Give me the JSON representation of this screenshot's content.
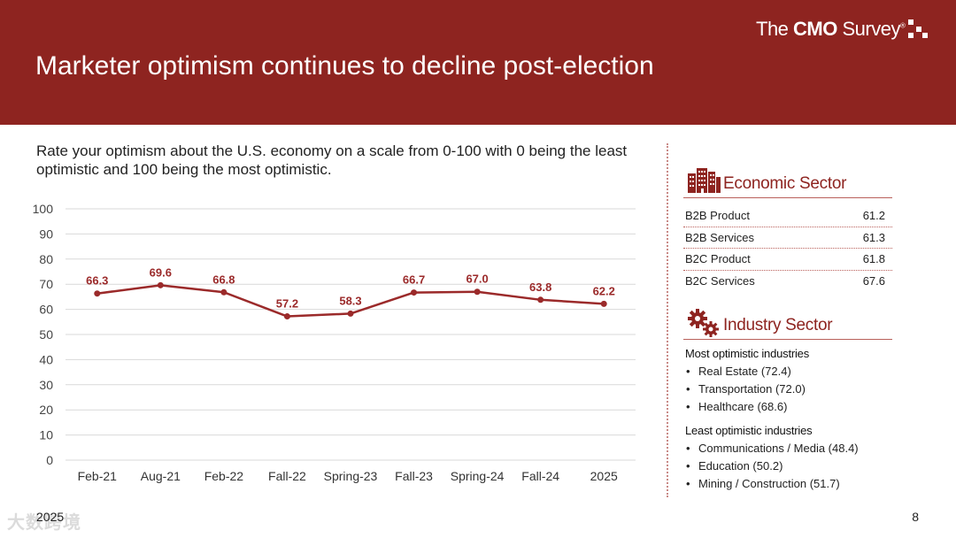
{
  "header": {
    "title": "Marketer optimism continues to decline post-election",
    "logo_prefix": "The ",
    "logo_bold": "CMO",
    "logo_suffix": " Survey",
    "logo_mark": "®"
  },
  "question": "Rate your optimism about the U.S. economy on a scale from 0-100 with 0 being the least optimistic and 100 being the most optimistic.",
  "chart_data": {
    "type": "line",
    "categories": [
      "Feb-21",
      "Aug-21",
      "Feb-22",
      "Fall-22",
      "Spring-23",
      "Fall-23",
      "Spring-24",
      "Fall-24",
      "2025"
    ],
    "series": [
      {
        "values": [
          66.3,
          69.6,
          66.8,
          57.2,
          58.3,
          66.7,
          67.0,
          63.8,
          62.2
        ],
        "labels": [
          "66.3",
          "69.6",
          "66.8",
          "57.2",
          "58.3",
          "66.7",
          "67.0",
          "63.8",
          "62.2"
        ]
      }
    ],
    "ylim": [
      0,
      100
    ],
    "yticks": [
      0,
      10,
      20,
      30,
      40,
      50,
      60,
      70,
      80,
      90,
      100
    ],
    "grid": true,
    "legend": "none",
    "title": "",
    "xlabel": "",
    "ylabel": "",
    "color": "#9b2a2a"
  },
  "economic_sector": {
    "heading": "Economic Sector",
    "icon": "buildings-icon",
    "rows": [
      {
        "label": "B2B Product",
        "value": "61.2"
      },
      {
        "label": "B2B Services",
        "value": "61.3"
      },
      {
        "label": "B2C Product",
        "value": "61.8"
      },
      {
        "label": "B2C Services",
        "value": "67.6"
      }
    ]
  },
  "industry_sector": {
    "heading": "Industry Sector",
    "icon": "gears-icon",
    "most_title": "Most optimistic industries",
    "most": [
      "Real Estate (72.4)",
      "Transportation (72.0)",
      "Healthcare (68.6)"
    ],
    "least_title": "Least optimistic industries",
    "least": [
      "Communications / Media (48.4)",
      "Education (50.2)",
      "Mining / Construction (51.7)"
    ]
  },
  "footer": {
    "year": "2025",
    "page": "8",
    "watermark": "大数跨境"
  },
  "colors": {
    "brand": "#8e2420",
    "line": "#9b2a2a",
    "accent_rule": "#b9605b"
  }
}
